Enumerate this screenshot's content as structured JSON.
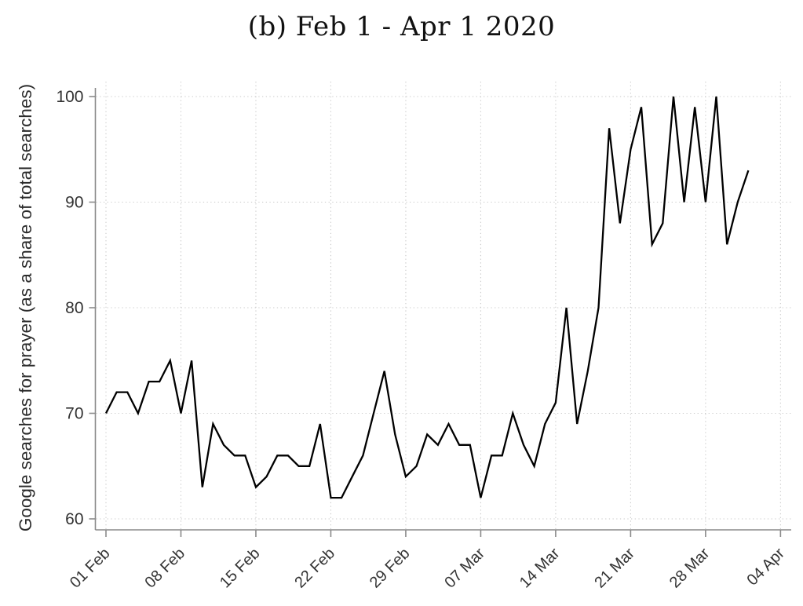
{
  "figure": {
    "title": "(b) Feb 1 - Apr 1 2020"
  },
  "chart_data": {
    "type": "line",
    "title": "(b) Feb 1 - Apr 1 2020",
    "xlabel": "",
    "ylabel": "Google searches for prayer (as a share of total searches)",
    "x_tick_labels": [
      "01 Feb",
      "08 Feb",
      "15 Feb",
      "22 Feb",
      "29 Feb",
      "07 Mar",
      "14 Mar",
      "21 Mar",
      "28 Mar",
      "04 Apr"
    ],
    "x_tick_days": [
      0,
      7,
      14,
      21,
      28,
      35,
      42,
      49,
      56,
      63
    ],
    "y_ticks": [
      60,
      70,
      80,
      90,
      100
    ],
    "ylim": [
      60,
      100
    ],
    "xlim_days": [
      0,
      63
    ],
    "grid": "dotted horizontal and vertical gridlines",
    "legend": "none",
    "series": [
      {
        "name": "Google searches for prayer (as a share of total searches)",
        "x_unit": "days since Feb 1 2020 (daily observations, Feb 1 - Apr 1)",
        "values": [
          70,
          72,
          72,
          70,
          73,
          73,
          75,
          70,
          75,
          63,
          69,
          67,
          66,
          66,
          63,
          64,
          66,
          66,
          65,
          65,
          69,
          62,
          62,
          64,
          66,
          70,
          74,
          68,
          64,
          65,
          68,
          67,
          69,
          67,
          67,
          62,
          66,
          66,
          70,
          67,
          65,
          69,
          71,
          80,
          69,
          74,
          80,
          97,
          88,
          95,
          99,
          86,
          88,
          100,
          90,
          99,
          90,
          100,
          86,
          90,
          93
        ]
      }
    ],
    "colors": {
      "line": "#000000",
      "axis": "#8a8a8a",
      "grid": "#c9c9c9",
      "tick_text": "#333333",
      "title_text": "#111111"
    }
  }
}
